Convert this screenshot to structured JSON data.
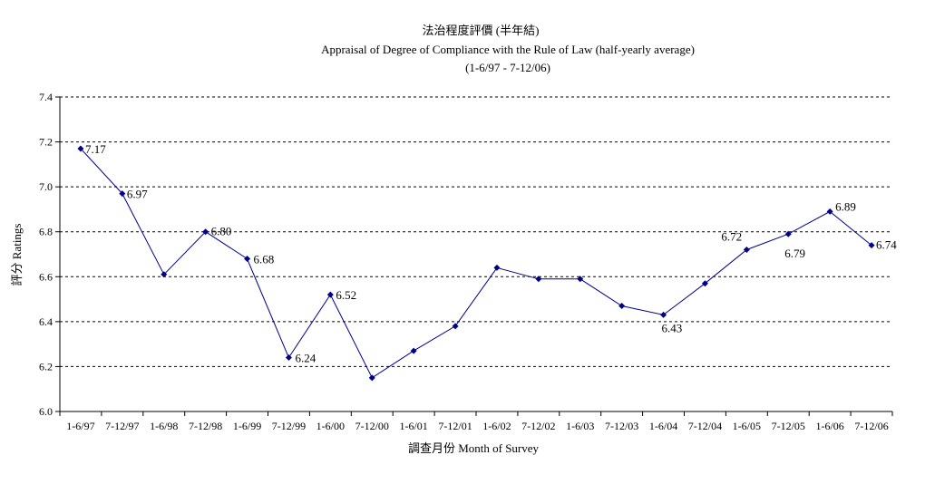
{
  "chart_data": {
    "type": "line",
    "title": "法治程度評價 (半年結)",
    "subtitle": "Appraisal of Degree of Compliance with the Rule of Law (half-yearly average)",
    "subtitle2": "(1-6/97 - 7-12/06)",
    "xlabel": "調查月份 Month of Survey",
    "ylabel": "評分 Ratings",
    "ylim": [
      6.0,
      7.4
    ],
    "yticks": [
      "6.0",
      "6.2",
      "6.4",
      "6.6",
      "6.8",
      "7.0",
      "7.2",
      "7.4"
    ],
    "grid": "horizontal dashed",
    "categories": [
      "1-6/97",
      "7-12/97",
      "1-6/98",
      "7-12/98",
      "1-6/99",
      "7-12/99",
      "1-6/00",
      "7-12/00",
      "1-6/01",
      "7-12/01",
      "1-6/02",
      "7-12/02",
      "1-6/03",
      "7-12/03",
      "1-6/04",
      "7-12/04",
      "1-6/05",
      "7-12/05",
      "1-6/06",
      "7-12/06"
    ],
    "series": [
      {
        "color": "#00008B",
        "values": [
          7.17,
          6.97,
          6.61,
          6.8,
          6.68,
          6.24,
          6.52,
          6.15,
          6.27,
          6.38,
          6.64,
          6.59,
          6.59,
          6.47,
          6.43,
          6.57,
          6.72,
          6.79,
          6.89,
          6.74
        ]
      }
    ],
    "data_labels": [
      {
        "index": 0,
        "text": "7.17"
      },
      {
        "index": 1,
        "text": "6.97"
      },
      {
        "index": 3,
        "text": "6.80"
      },
      {
        "index": 4,
        "text": "6.68"
      },
      {
        "index": 5,
        "text": "6.24"
      },
      {
        "index": 6,
        "text": "6.52"
      },
      {
        "index": 14,
        "text": "6.43"
      },
      {
        "index": 16,
        "text": "6.72"
      },
      {
        "index": 17,
        "text": "6.79"
      },
      {
        "index": 18,
        "text": "6.89"
      },
      {
        "index": 19,
        "text": "6.74"
      }
    ]
  }
}
